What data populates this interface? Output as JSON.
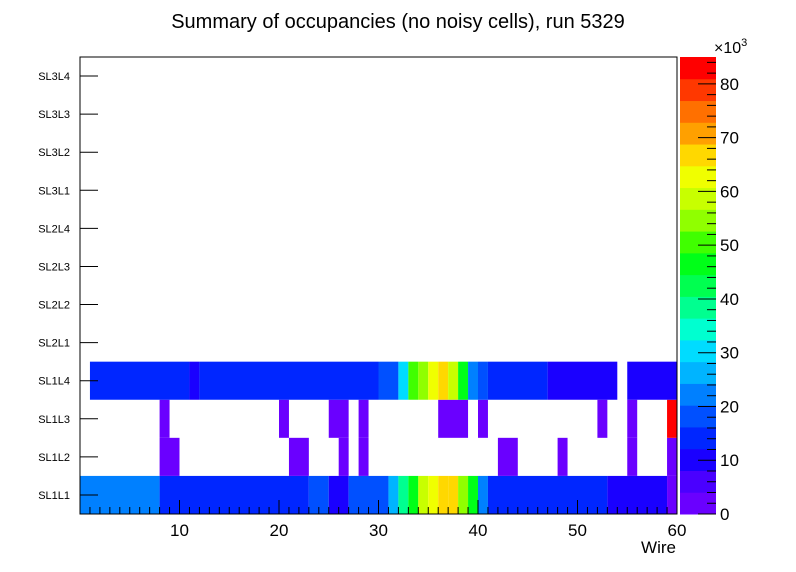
{
  "chart_data": {
    "type": "heatmap",
    "title": "Summary of occupancies (no noisy cells), run 5329",
    "xlabel": "Wire",
    "ylabel": "",
    "xlim": [
      0,
      60
    ],
    "x_ticks": [
      10,
      20,
      30,
      40,
      50,
      60
    ],
    "y_categories": [
      "SL1L1",
      "SL1L2",
      "SL1L3",
      "SL1L4",
      "SL2L1",
      "SL2L2",
      "SL2L3",
      "SL2L4",
      "SL3L1",
      "SL3L2",
      "SL3L3",
      "SL3L4"
    ],
    "z_range": [
      0,
      85000
    ],
    "z_exponent_label": "×10",
    "z_exponent_power": "3",
    "z_tick_labels": [
      "0",
      "10",
      "20",
      "30",
      "40",
      "50",
      "60",
      "70",
      "80"
    ],
    "colors": {
      "frame": "#000000",
      "palette": [
        "#6a00ff",
        "#4a00ff",
        "#1a00ff",
        "#0026ff",
        "#0050ff",
        "#0080ff",
        "#00b4ff",
        "#00dcff",
        "#00ffd0",
        "#00ff90",
        "#00ff50",
        "#00ff18",
        "#40ff00",
        "#90ff00",
        "#c8ff00",
        "#f0ff00",
        "#ffd800",
        "#ffa000",
        "#ff7000",
        "#ff3800",
        "#ff0000"
      ]
    },
    "rows": [
      {
        "layer": "SL1L1",
        "segments": [
          {
            "from": 0,
            "to": 8,
            "value": 22000
          },
          {
            "from": 8,
            "to": 23,
            "value": 13000
          },
          {
            "from": 23,
            "to": 25,
            "value": 20000
          },
          {
            "from": 25,
            "to": 27,
            "value": 12000
          },
          {
            "from": 27,
            "to": 31,
            "value": 20000
          },
          {
            "from": 31,
            "to": 32,
            "value": 26000
          },
          {
            "from": 32,
            "to": 33,
            "value": 40000
          },
          {
            "from": 33,
            "to": 34,
            "value": 48000
          },
          {
            "from": 34,
            "to": 35,
            "value": 57000
          },
          {
            "from": 35,
            "to": 36,
            "value": 64000
          },
          {
            "from": 36,
            "to": 37,
            "value": 67000
          },
          {
            "from": 37,
            "to": 38,
            "value": 65000
          },
          {
            "from": 38,
            "to": 39,
            "value": 55000
          },
          {
            "from": 39,
            "to": 40,
            "value": 45000
          },
          {
            "from": 40,
            "to": 41,
            "value": 21000
          },
          {
            "from": 41,
            "to": 53,
            "value": 13000
          },
          {
            "from": 53,
            "to": 59,
            "value": 9000
          },
          {
            "from": 59,
            "to": 60,
            "value": 2000
          }
        ]
      },
      {
        "layer": "SL1L2",
        "segments": [
          {
            "from": 8,
            "to": 10,
            "value": 2000
          },
          {
            "from": 21,
            "to": 23,
            "value": 2000
          },
          {
            "from": 26,
            "to": 27,
            "value": 2000
          },
          {
            "from": 28,
            "to": 29,
            "value": 2000
          },
          {
            "from": 42,
            "to": 44,
            "value": 2000
          },
          {
            "from": 48,
            "to": 49,
            "value": 2000
          },
          {
            "from": 55,
            "to": 56,
            "value": 2000
          },
          {
            "from": 59,
            "to": 60,
            "value": 2000
          }
        ]
      },
      {
        "layer": "SL1L3",
        "segments": [
          {
            "from": 8,
            "to": 9,
            "value": 2000
          },
          {
            "from": 20,
            "to": 21,
            "value": 2000
          },
          {
            "from": 25,
            "to": 27,
            "value": 2000
          },
          {
            "from": 28,
            "to": 29,
            "value": 2000
          },
          {
            "from": 36,
            "to": 39,
            "value": 2000
          },
          {
            "from": 40,
            "to": 41,
            "value": 2000
          },
          {
            "from": 52,
            "to": 53,
            "value": 2000
          },
          {
            "from": 55,
            "to": 56,
            "value": 2000
          },
          {
            "from": 59,
            "to": 60,
            "value": 84000
          }
        ]
      },
      {
        "layer": "SL1L4",
        "segments": [
          {
            "from": 1,
            "to": 11,
            "value": 13000
          },
          {
            "from": 11,
            "to": 12,
            "value": 11000
          },
          {
            "from": 12,
            "to": 30,
            "value": 13000
          },
          {
            "from": 30,
            "to": 32,
            "value": 20000
          },
          {
            "from": 32,
            "to": 33,
            "value": 30000
          },
          {
            "from": 33,
            "to": 34,
            "value": 49000
          },
          {
            "from": 34,
            "to": 35,
            "value": 56000
          },
          {
            "from": 35,
            "to": 36,
            "value": 62000
          },
          {
            "from": 36,
            "to": 37,
            "value": 66000
          },
          {
            "from": 37,
            "to": 38,
            "value": 58000
          },
          {
            "from": 38,
            "to": 39,
            "value": 47000
          },
          {
            "from": 39,
            "to": 40,
            "value": 24000
          },
          {
            "from": 40,
            "to": 41,
            "value": 20000
          },
          {
            "from": 41,
            "to": 47,
            "value": 13000
          },
          {
            "from": 47,
            "to": 54,
            "value": 11000
          },
          {
            "from": 55,
            "to": 60,
            "value": 11000
          }
        ]
      }
    ]
  }
}
